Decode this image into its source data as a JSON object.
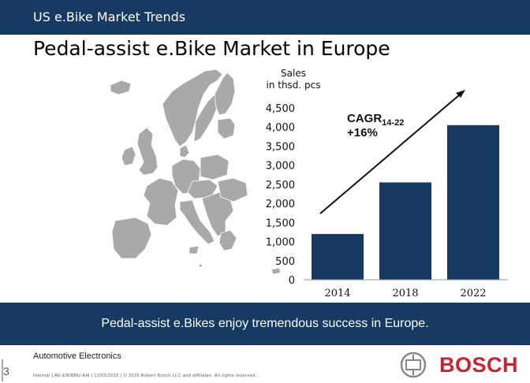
{
  "header": {
    "top_title": "US e.Bike Market Trends",
    "main_title": "Pedal-assist e.Bike Market in Europe"
  },
  "chart_data": {
    "type": "bar",
    "title": "",
    "ylabel_line1": "Sales",
    "ylabel_line2": "in thsd. pcs",
    "categories": [
      "2014",
      "2018",
      "2022"
    ],
    "values": [
      1200,
      2550,
      4050
    ],
    "ylim": [
      0,
      4500
    ],
    "yticks": [
      "0",
      "500",
      "1,000",
      "1,500",
      "2,000",
      "2,500",
      "3,000",
      "3,500",
      "4,000",
      "4,500"
    ],
    "ytick_values": [
      0,
      500,
      1000,
      1500,
      2000,
      2500,
      3000,
      3500,
      4000,
      4500
    ],
    "annotation": {
      "label": "CAGR",
      "subscript": "14-22",
      "value": "+16%"
    },
    "bar_color": "#173a63",
    "grid": false
  },
  "banner": {
    "text": "Pedal-assist e.Bikes enjoy tremendous success in Europe."
  },
  "footer": {
    "page_number": "3",
    "department": "Automotive Electronics",
    "legal": "Internal | AE-EB/RBU-Ald | 12/03/2015 | © 2015 Robert Bosch LLC and affiliates. All rights reserved.",
    "logo_text": "BOSCH"
  },
  "colors": {
    "navy": "#173a63",
    "brand_red": "#d11f2b",
    "map_grey": "#a9a9a9"
  }
}
